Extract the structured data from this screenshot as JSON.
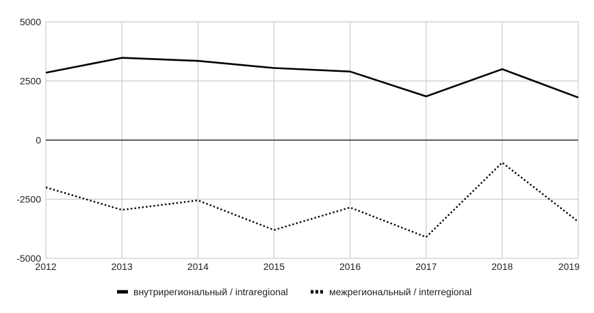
{
  "chart_data": {
    "type": "line",
    "title": "",
    "xlabel": "",
    "ylabel": "",
    "categories": [
      "2012",
      "2013",
      "2014",
      "2015",
      "2016",
      "2017",
      "2018",
      "2019"
    ],
    "ylim": [
      -5000,
      5000
    ],
    "yticks": [
      5000,
      2500,
      0,
      -2500,
      -5000
    ],
    "yticklabels": [
      "5000",
      "2500",
      "0",
      "-2500",
      "-5000"
    ],
    "grid": true,
    "legend_position": "bottom",
    "series": [
      {
        "name": "внутрирегиональный / intraregional",
        "values": [
          2850,
          3480,
          3350,
          3050,
          2900,
          1850,
          3000,
          1800
        ],
        "style": "solid",
        "color": "#000000"
      },
      {
        "name": "межрегиональный / interregional",
        "values": [
          -2000,
          -2950,
          -2550,
          -3800,
          -2850,
          -4100,
          -950,
          -3450
        ],
        "style": "dotted",
        "color": "#000000"
      }
    ]
  }
}
